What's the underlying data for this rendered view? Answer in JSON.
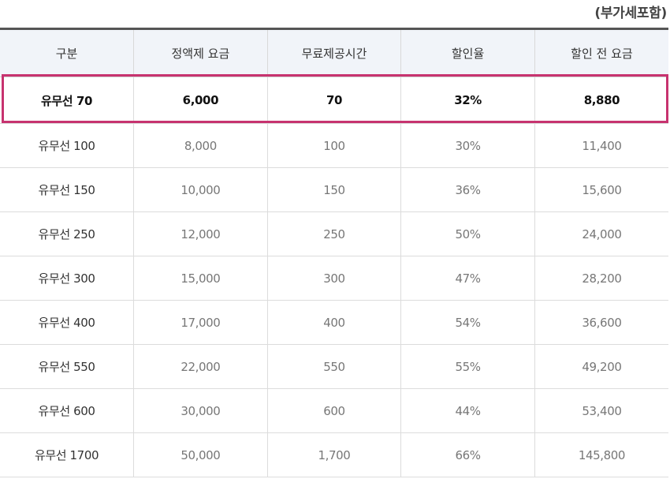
{
  "note": "(부가세포함)",
  "columns": [
    "구분",
    "정액제 요금",
    "무료제공시간",
    "할인율",
    "할인 전 요금"
  ],
  "highlight_color": "#c7336f",
  "rows": [
    [
      "유무선 70",
      "6,000",
      "70",
      "32%",
      "8,880"
    ],
    [
      "유무선 100",
      "8,000",
      "100",
      "30%",
      "11,400"
    ],
    [
      "유무선 150",
      "10,000",
      "150",
      "36%",
      "15,600"
    ],
    [
      "유무선 250",
      "12,000",
      "250",
      "50%",
      "24,000"
    ],
    [
      "유무선 300",
      "15,000",
      "300",
      "47%",
      "28,200"
    ],
    [
      "유무선 400",
      "17,000",
      "400",
      "54%",
      "36,600"
    ],
    [
      "유무선 550",
      "22,000",
      "550",
      "55%",
      "49,200"
    ],
    [
      "유무선 600",
      "30,000",
      "600",
      "44%",
      "53,400"
    ],
    [
      "유무선 1700",
      "50,000",
      "1,700",
      "66%",
      "145,800"
    ]
  ]
}
